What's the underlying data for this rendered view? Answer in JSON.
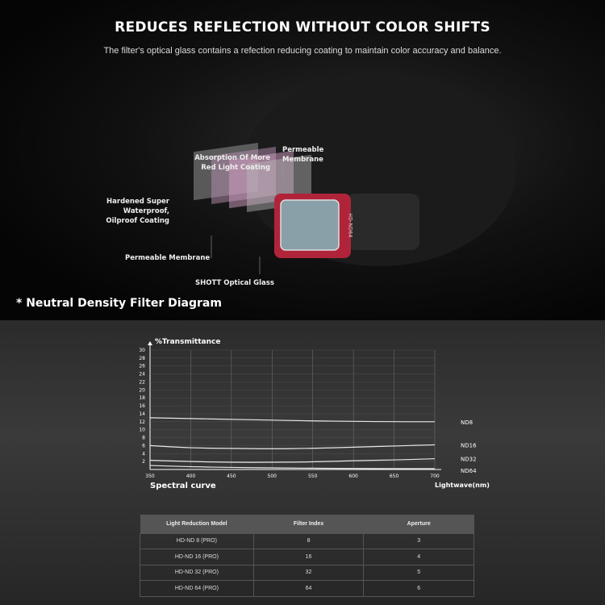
{
  "header": {
    "title": "REDUCES REFLECTION WITHOUT COLOR SHIFTS",
    "subtitle": "The filter's optical glass contains a refection reducing coating to maintain color accuracy and balance."
  },
  "layers": {
    "absorption": "Absorption Of More Red Light Coating",
    "membrane_top": "Permeable Membrane",
    "hardened": "Hardened Super Waterproof, Oilproof Coating",
    "membrane_bottom": "Permeable Membrane",
    "glass": "SHOTT Optical Glass",
    "filter_print": "HD-ND64"
  },
  "diagram_title": "* Neutral Density Filter Diagram",
  "colors": {
    "filter_frame": "#b0243a",
    "curve": "#e8e8e8"
  },
  "chart_data": {
    "type": "line",
    "ylabel": "%Transmittance",
    "xlabel": "Lightwave(nm)",
    "caption": "Spectral curve",
    "xlim": [
      350,
      700
    ],
    "ylim": [
      0,
      30
    ],
    "grid": true,
    "xticks": [
      350,
      400,
      450,
      500,
      550,
      600,
      650,
      700
    ],
    "yticks": [
      2,
      4,
      6,
      8,
      10,
      12,
      14,
      16,
      18,
      20,
      22,
      24,
      26,
      28,
      30
    ],
    "x": [
      350,
      400,
      450,
      500,
      550,
      600,
      650,
      700
    ],
    "series": [
      {
        "name": "ND8",
        "values": [
          13,
          12.8,
          12.6,
          12.4,
          12.2,
          12.1,
          12,
          12
        ]
      },
      {
        "name": "ND16",
        "values": [
          6,
          5.4,
          5.3,
          5.2,
          5.3,
          5.6,
          5.9,
          6.2
        ]
      },
      {
        "name": "ND32",
        "values": [
          2.3,
          2,
          1.8,
          1.8,
          1.9,
          2.2,
          2.4,
          2.7
        ]
      },
      {
        "name": "ND64",
        "values": [
          1,
          0.7,
          0.5,
          0.4,
          0.3,
          0.25,
          0.2,
          0.2
        ]
      }
    ]
  },
  "table": {
    "headers": [
      "Light Reduction Model",
      "Filter Index",
      "Aperture"
    ],
    "rows": [
      [
        "HD-ND 8 (PRO)",
        "8",
        "3"
      ],
      [
        "HD-ND 16 (PRO)",
        "16",
        "4"
      ],
      [
        "HD-ND 32 (PRO)",
        "32",
        "5"
      ],
      [
        "HD-ND 64 (PRO)",
        "64",
        "6"
      ]
    ]
  }
}
